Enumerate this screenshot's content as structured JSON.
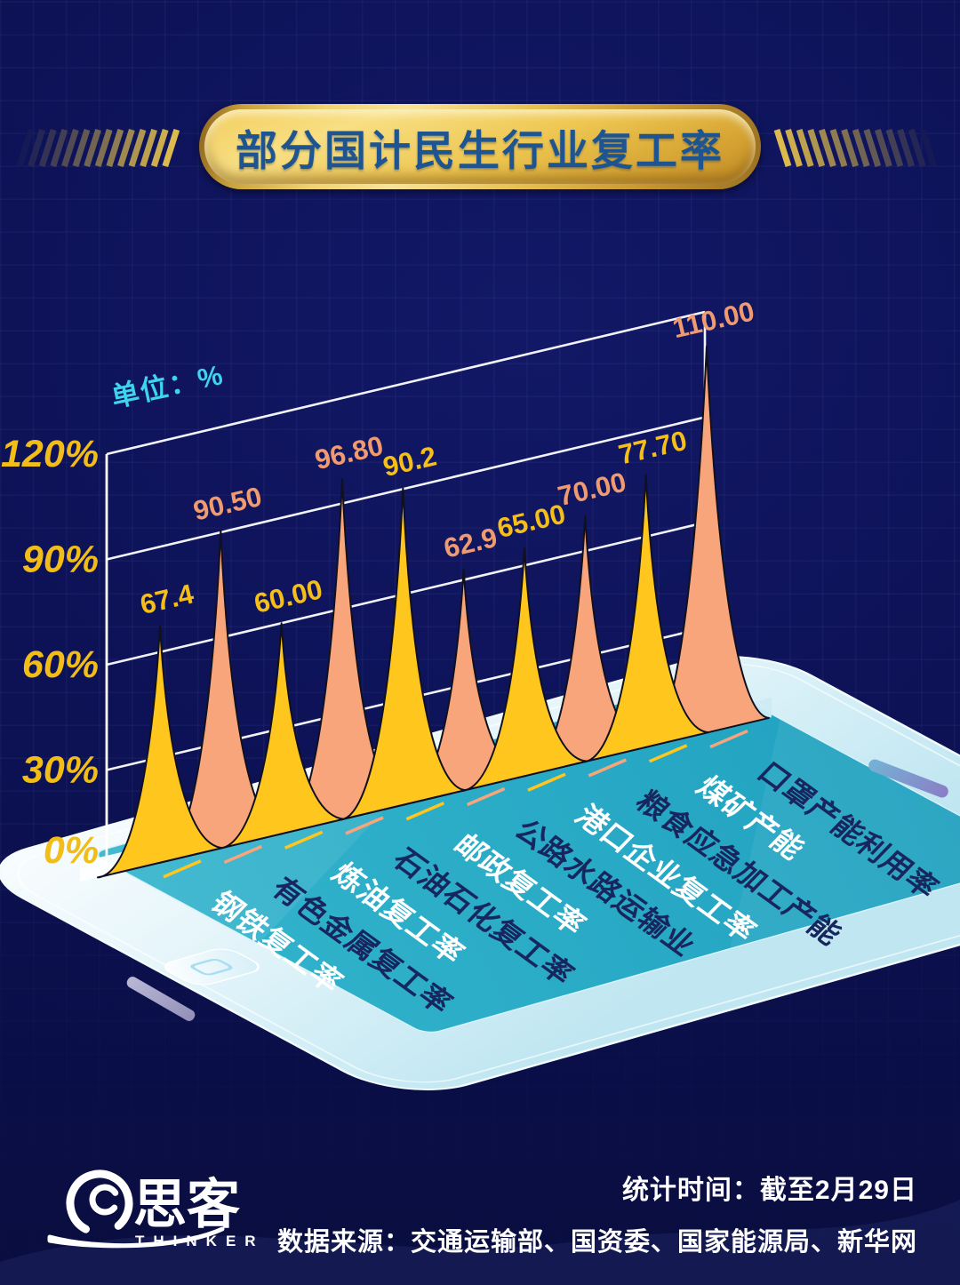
{
  "page": {
    "title": "部分国计民生行业复工率",
    "unit_label": "单位：%"
  },
  "chart_data": {
    "type": "area",
    "title": "部分国计民生行业复工率",
    "unit": "%",
    "perspective": "3d-slanted-spikes-on-tablet",
    "grid": true,
    "legend": "none",
    "ylim": [
      0,
      120
    ],
    "y_ticks": [
      {
        "label": "0%",
        "value": 0
      },
      {
        "label": "30%",
        "value": 30
      },
      {
        "label": "60%",
        "value": 60
      },
      {
        "label": "90%",
        "value": 90
      },
      {
        "label": "120%",
        "value": 120
      }
    ],
    "categories": [
      "钢铁复工率",
      "有色金属复工率",
      "炼油复工率",
      "石油石化复工率",
      "邮政复工率",
      "公路水路运输业",
      "港口企业复工率",
      "粮食应急加工产能",
      "煤矿产能",
      "口罩产能利用率"
    ],
    "values": [
      67.4,
      90.5,
      60,
      96.8,
      90.2,
      62.9,
      65,
      70,
      77.7,
      110
    ],
    "value_labels": [
      "67.4",
      "90.50",
      "60.00",
      "96.80",
      "90.2",
      "62.9",
      "65.00",
      "70.00",
      "77.70",
      "110.00"
    ],
    "series": [
      {
        "name": "黄色峰",
        "color": "#FFC61E",
        "label_color": "#F5BE18",
        "indices": [
          0,
          2,
          4,
          6,
          8
        ]
      },
      {
        "name": "橙色峰",
        "color": "#F8A57B",
        "label_color": "#F09A70",
        "indices": [
          1,
          3,
          5,
          7,
          9
        ]
      }
    ],
    "category_label_colors": [
      "#FFFFFF",
      "#17265E"
    ]
  },
  "footer": {
    "stat_time": "统计时间：截至2月29日",
    "data_source": "数据来源：交通运输部、国资委、国家能源局、新华网",
    "brand_cn": "思客",
    "brand_en": "THINKER"
  },
  "colors": {
    "background": "#0D1254",
    "title_text": "#1E5590",
    "badge_gold": "#E9BE4B",
    "axis_label_gold": "#F2BD17",
    "unit_text_cyan": "#3ED4EE",
    "grid_line": "#FFFFFF",
    "screen_teal": "#29ACC6",
    "spike_yellow": "#FFC61E",
    "spike_salmon": "#F8A57B",
    "category_white": "#FFFFFF",
    "category_navy": "#17265E",
    "footer_text": "#FFFFFF"
  }
}
